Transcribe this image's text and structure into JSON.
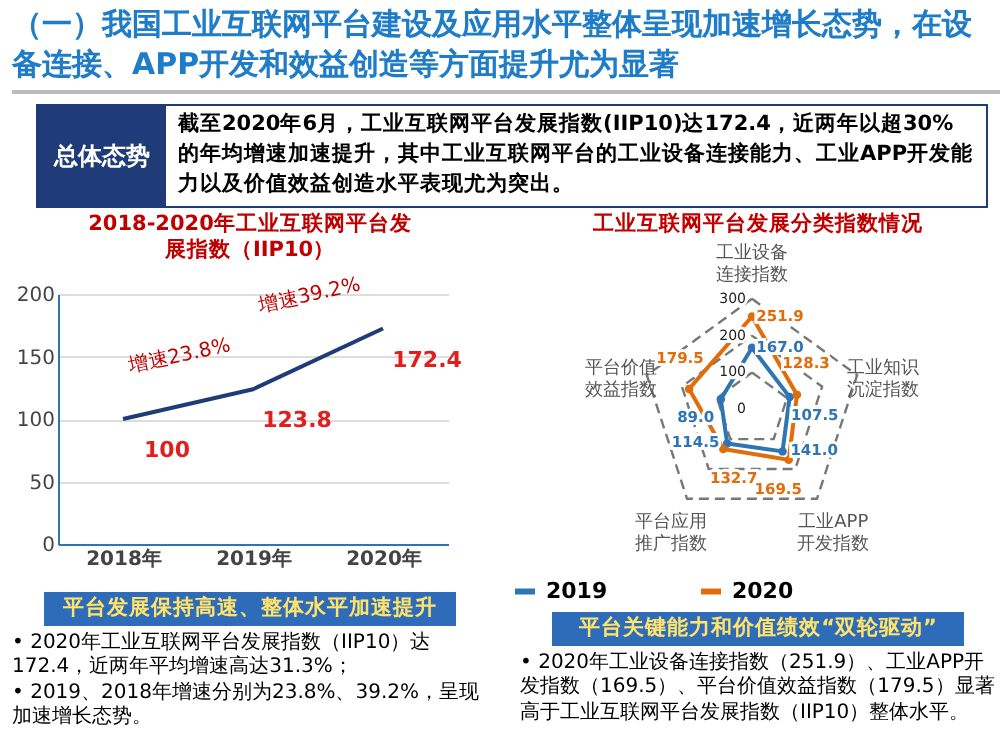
{
  "chart_data": [
    {
      "type": "other",
      "title": "（一）我国工业互联网平台建设及应用水平整体呈现加速增长态势，在设备连接、APP开发和效益创造等方面提升尤为显著",
      "annotations": [
        "总体态势",
        "截至2020年6月，工业互联网平台发展指数(IIP10)达172.4，近两年以超30%的年均增速加速提升，其中工业互联网平台的工业设备连接能力、工业APP开发能力以及价值效益创造水平表现尤为突出。"
      ]
    },
    {
      "type": "line",
      "title": "2018-2020年工业互联网平台发展指数（IIP10）",
      "categories": [
        "2018年",
        "2019年",
        "2020年"
      ],
      "series": [
        {
          "color": "#1f3c78",
          "values": [
            100,
            123.8,
            172.4
          ]
        }
      ],
      "ylim": [
        0,
        200
      ],
      "yticks": [
        0,
        50,
        100,
        150,
        200
      ],
      "grid": "y",
      "data_labels": true,
      "annotations": [
        {
          "text": "增速23.8%",
          "x": "2019年",
          "y": 123.8
        },
        {
          "text": "增速39.2%",
          "x": "2020年",
          "y": 172.4
        },
        "平台发展保持高速、整体水平加速提升",
        "• 2020年工业互联网平台发展指数（IIP10）达172.4，近两年平均增速高达31.3%；",
        "• 2019、2018年增速分别为23.8%、39.2%，呈现加速增长态势。"
      ]
    },
    {
      "type": "radar",
      "title": "工业互联网平台发展分类指数情况",
      "categories": [
        "工业设备连接指数",
        "工业知识沉淀指数",
        "工业APP开发指数",
        "平台应用推广指数",
        "平台价值效益指数"
      ],
      "series": [
        {
          "name": "2019",
          "color": "#2e75b6",
          "values": [
            167.0,
            107.5,
            141.0,
            114.5,
            89.0
          ],
          "value_labels": [
            "167.0",
            "107.5",
            "141.0",
            "114.5",
            "89.0"
          ]
        },
        {
          "name": "2020",
          "color": "#e36c0a",
          "values": [
            251.9,
            128.3,
            169.5,
            132.7,
            179.5
          ],
          "value_labels": [
            "251.9",
            "128.3",
            "169.5",
            "132.7",
            "179.5"
          ]
        }
      ],
      "ylim": [
        0,
        300
      ],
      "yticks": [
        0,
        100,
        200,
        300
      ],
      "grid": true,
      "legend": "bottom",
      "marker": "circle",
      "annotations": [
        "平台关键能力和价值绩效“双轮驱动”",
        "• 2020年工业设备连接指数（251.9）、工业APP开发指数（169.5）、平台价值效益指数（179.5）显著高于工业互联网平台发展指数（IIP10）整体水平。"
      ]
    }
  ]
}
